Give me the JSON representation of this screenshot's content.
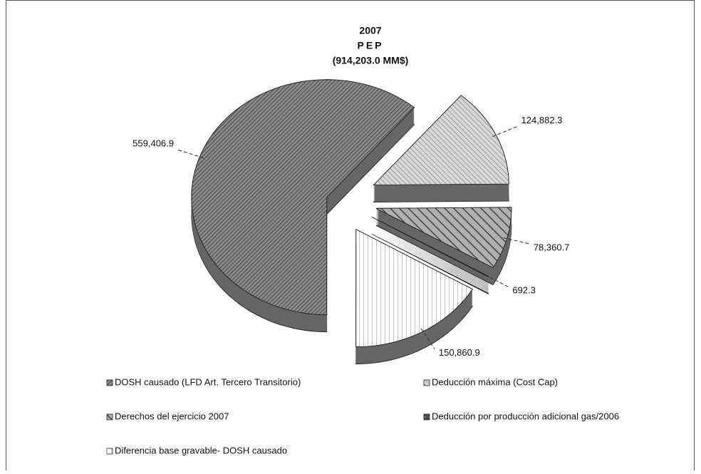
{
  "chart_data": {
    "type": "pie",
    "title_lines": [
      "2007",
      "PEP",
      "(914,203.0 MM$)"
    ],
    "categories": [
      "DOSH causado (LFD Art. Tercero Transitorio)",
      "Deducción máxima (Cost Cap)",
      "Derechos del ejercicio 2007",
      "Deducción por producción adicional gas/2006",
      "Diferencia base gravable- DOSH causado"
    ],
    "values": [
      559406.9,
      124882.3,
      78360.7,
      692.3,
      150860.9
    ],
    "value_labels": [
      "559,406.9",
      "124,882.3",
      "78,360.7",
      "692.3",
      "150,860.9"
    ],
    "colors": [
      "#8a8a8a",
      "#d8d8d8",
      "#b0b0b0",
      "#4a4a4a",
      "#ffffff"
    ]
  }
}
